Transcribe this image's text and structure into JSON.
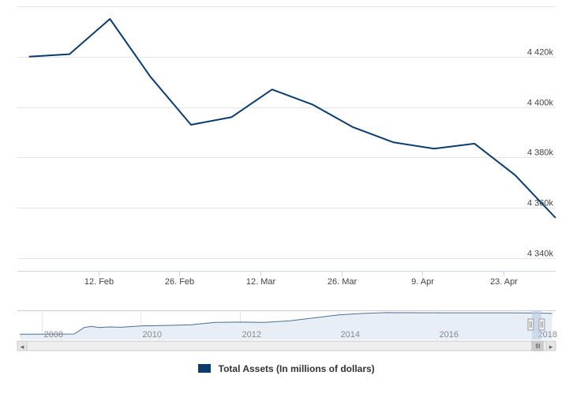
{
  "chart_data": {
    "type": "line",
    "title": "",
    "xlabel": "",
    "ylabel": "",
    "ylim": [
      4335,
      4440
    ],
    "y_ticks": [
      {
        "value": 4340,
        "label": "4 340k"
      },
      {
        "value": 4360,
        "label": "4 360k"
      },
      {
        "value": 4380,
        "label": "4 380k"
      },
      {
        "value": 4400,
        "label": "4 400k"
      },
      {
        "value": 4420,
        "label": "4 420k"
      }
    ],
    "x_ticks": [
      {
        "date": "2018-02-12",
        "label": "12. Feb"
      },
      {
        "date": "2018-02-26",
        "label": "26. Feb"
      },
      {
        "date": "2018-03-12",
        "label": "12. Mar"
      },
      {
        "date": "2018-03-26",
        "label": "26. Mar"
      },
      {
        "date": "2018-04-09",
        "label": "9. Apr"
      },
      {
        "date": "2018-04-23",
        "label": "23. Apr"
      }
    ],
    "x_range": [
      "2018-01-29",
      "2018-05-02"
    ],
    "grid": true,
    "legend_position": "bottom-center",
    "series": [
      {
        "name": "Total Assets (In millions of dollars)",
        "color": "#0b3c6e",
        "points": [
          {
            "x": "2018-01-31",
            "y": 4420
          },
          {
            "x": "2018-02-07",
            "y": 4421
          },
          {
            "x": "2018-02-14",
            "y": 4435
          },
          {
            "x": "2018-02-21",
            "y": 4412
          },
          {
            "x": "2018-02-28",
            "y": 4393
          },
          {
            "x": "2018-03-07",
            "y": 4396
          },
          {
            "x": "2018-03-14",
            "y": 4407
          },
          {
            "x": "2018-03-21",
            "y": 4401
          },
          {
            "x": "2018-03-28",
            "y": 4392
          },
          {
            "x": "2018-04-04",
            "y": 4386
          },
          {
            "x": "2018-04-11",
            "y": 4383.5
          },
          {
            "x": "2018-04-18",
            "y": 4385.5
          },
          {
            "x": "2018-04-25",
            "y": 4373
          },
          {
            "x": "2018-05-02",
            "y": 4356
          }
        ]
      }
    ],
    "navigator": {
      "x_ticks": [
        {
          "year": 2008,
          "label": "2008"
        },
        {
          "year": 2010,
          "label": "2010"
        },
        {
          "year": 2012,
          "label": "2012"
        },
        {
          "year": 2014,
          "label": "2014"
        },
        {
          "year": 2016,
          "label": "2016"
        },
        {
          "year": 2018,
          "label": "2018"
        }
      ],
      "year_range": [
        2007.5,
        2018.4
      ],
      "ylim": [
        0,
        4600
      ],
      "series": [
        {
          "x": 2007.55,
          "y": 900
        },
        {
          "x": 2008.65,
          "y": 920
        },
        {
          "x": 2008.85,
          "y": 2000
        },
        {
          "x": 2009.0,
          "y": 2200
        },
        {
          "x": 2009.15,
          "y": 2000
        },
        {
          "x": 2009.35,
          "y": 2100
        },
        {
          "x": 2009.6,
          "y": 2050
        },
        {
          "x": 2010.0,
          "y": 2280
        },
        {
          "x": 2010.5,
          "y": 2350
        },
        {
          "x": 2011.0,
          "y": 2450
        },
        {
          "x": 2011.5,
          "y": 2850
        },
        {
          "x": 2012.0,
          "y": 2900
        },
        {
          "x": 2012.5,
          "y": 2850
        },
        {
          "x": 2013.0,
          "y": 3100
        },
        {
          "x": 2013.5,
          "y": 3600
        },
        {
          "x": 2014.0,
          "y": 4100
        },
        {
          "x": 2014.5,
          "y": 4350
        },
        {
          "x": 2015.0,
          "y": 4480
        },
        {
          "x": 2016.0,
          "y": 4460
        },
        {
          "x": 2017.0,
          "y": 4450
        },
        {
          "x": 2017.5,
          "y": 4460
        },
        {
          "x": 2018.0,
          "y": 4420
        },
        {
          "x": 2018.33,
          "y": 4356
        }
      ]
    }
  },
  "legend": {
    "label": "Total Assets (In millions of dollars)",
    "color": "#0b3c6e"
  },
  "navigator_controls": {
    "left_arrow": "◂",
    "right_arrow": "▸"
  },
  "colors": {
    "line": "#0b3c6e",
    "grid": "#e6e6e6",
    "navigator_fill": "#e8eef6",
    "navigator_mask": "#b7cbe4",
    "scrollbar_bg": "#eeeeee",
    "scrollbar_border": "#cccccc"
  }
}
